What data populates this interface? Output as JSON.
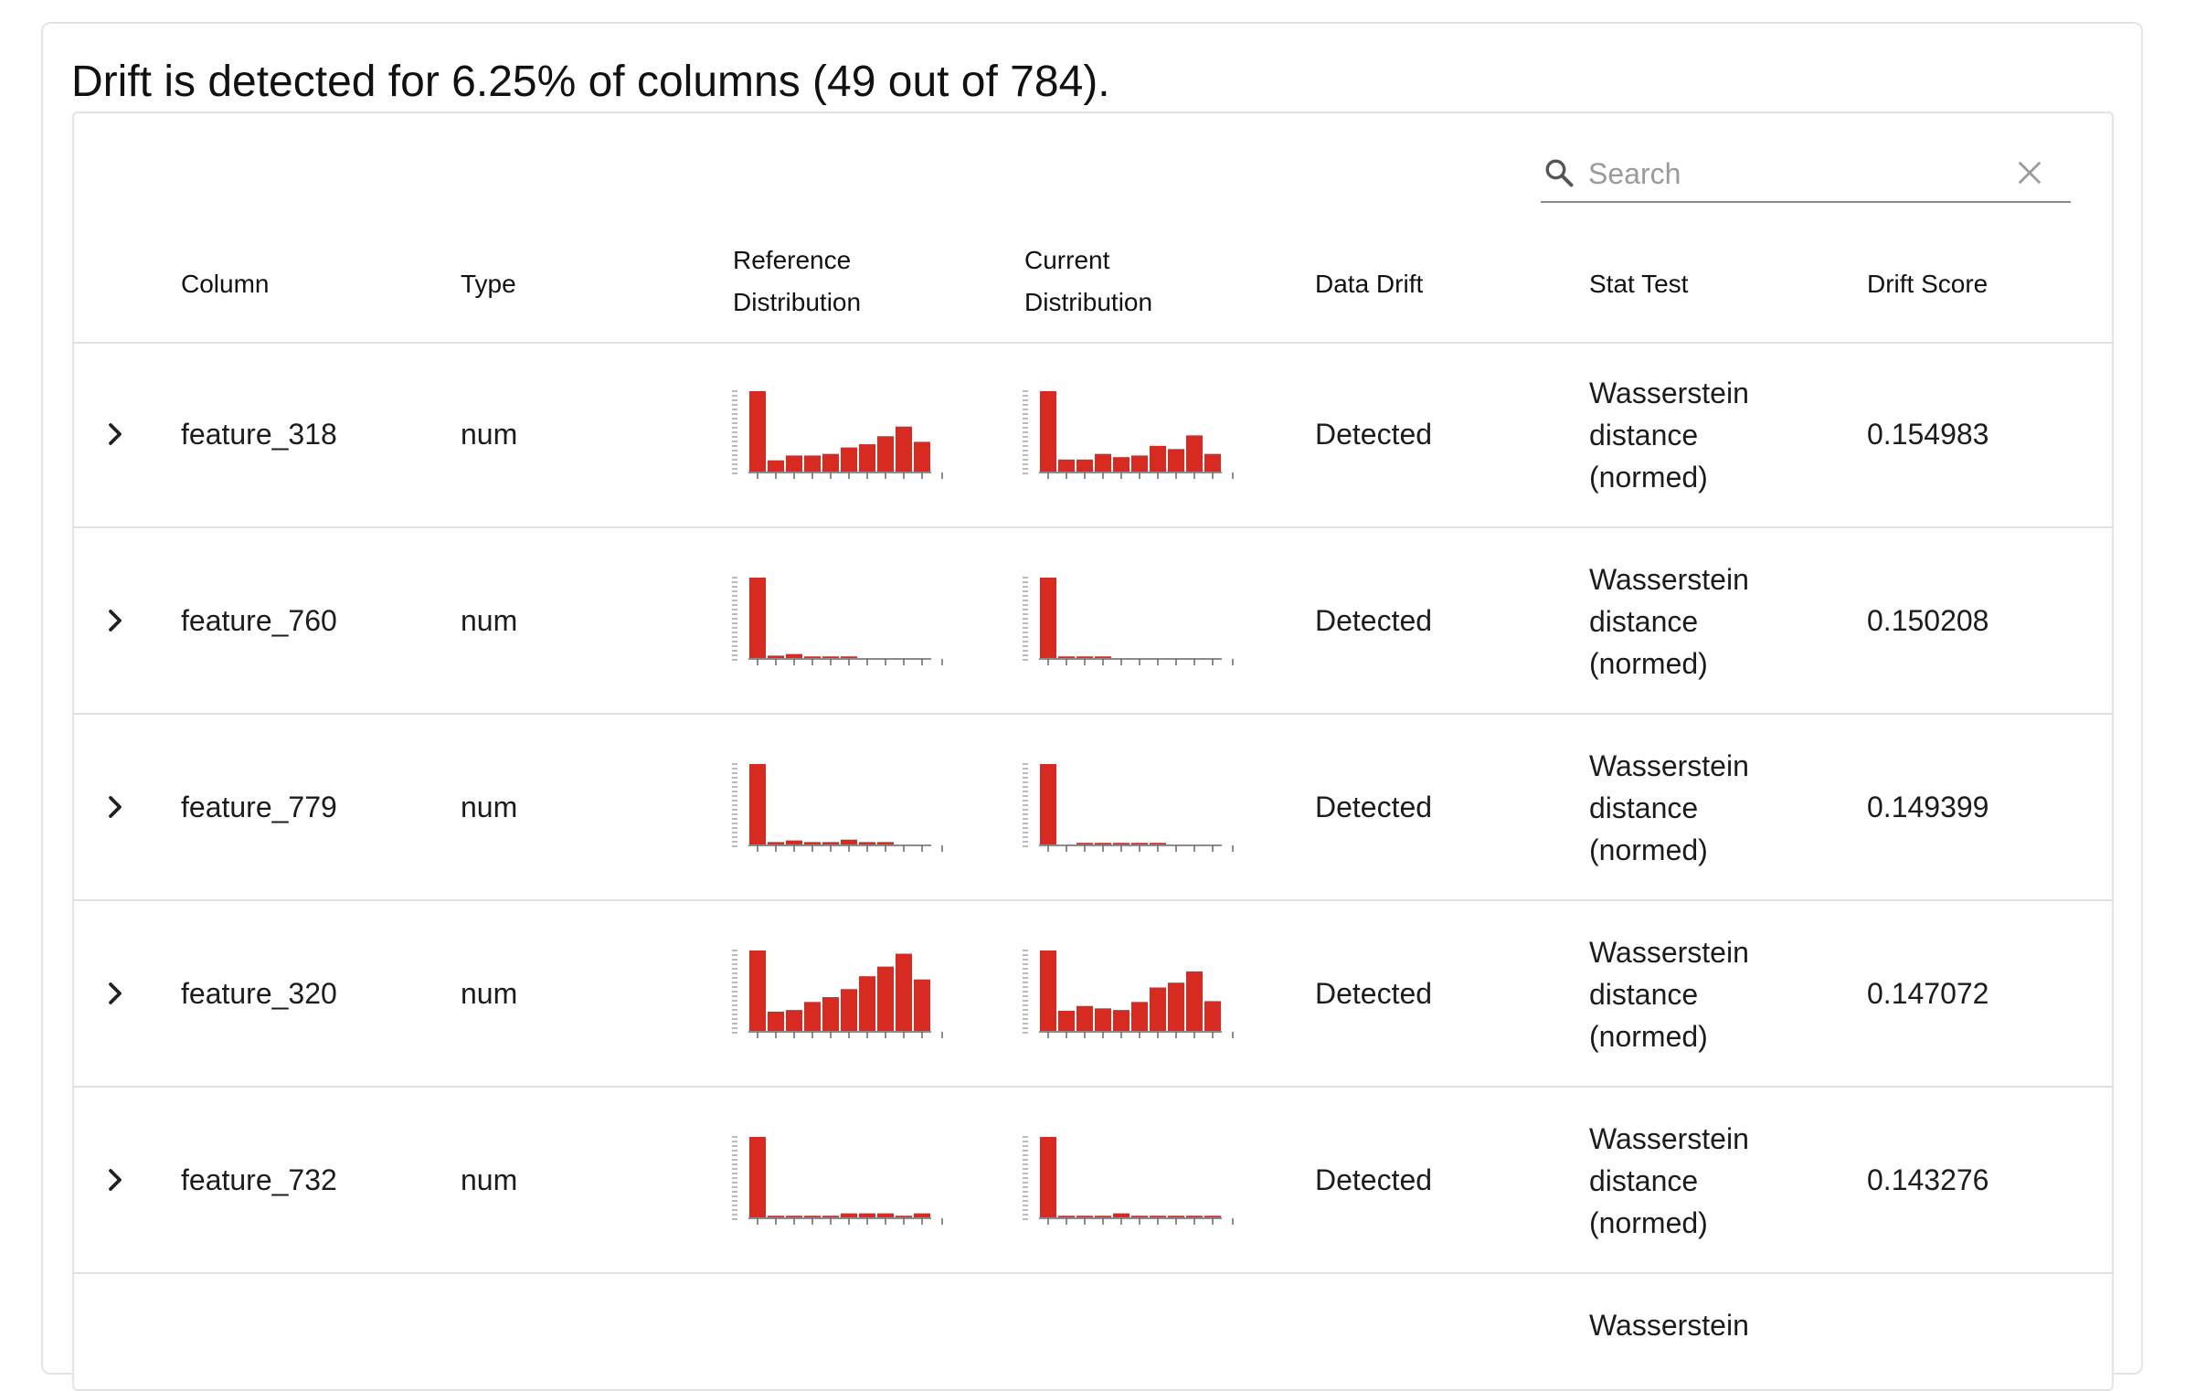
{
  "headline": "Drift is detected for 6.25% of columns (49 out of 784).",
  "search": {
    "placeholder": "Search",
    "value": ""
  },
  "columns": {
    "column": "Column",
    "type": "Type",
    "reference_line1": "Reference",
    "reference_line2": "Distribution",
    "current_line1": "Current",
    "current_line2": "Distribution",
    "data_drift": "Data Drift",
    "stat_test": "Stat Test",
    "drift_score": "Drift Score"
  },
  "colors": {
    "bar": "#d72b22",
    "border": "#e0e0e0"
  },
  "rows": [
    {
      "column": "feature_318",
      "type": "num",
      "drift": "Detected",
      "stat_line1": "Wasserstein",
      "stat_line2": "distance",
      "stat_line3": "(normed)",
      "score": "0.154983",
      "reference": [
        1.0,
        0.14,
        0.2,
        0.2,
        0.22,
        0.3,
        0.34,
        0.44,
        0.56,
        0.37
      ],
      "current": [
        1.0,
        0.15,
        0.15,
        0.22,
        0.18,
        0.2,
        0.32,
        0.28,
        0.45,
        0.22
      ]
    },
    {
      "column": "feature_760",
      "type": "num",
      "drift": "Detected",
      "stat_line1": "Wasserstein",
      "stat_line2": "distance",
      "stat_line3": "(normed)",
      "score": "0.150208",
      "reference": [
        1.0,
        0.03,
        0.05,
        0.02,
        0.02,
        0.02,
        0.0,
        0.0,
        0.0,
        0.0
      ],
      "current": [
        1.0,
        0.02,
        0.02,
        0.02,
        0.0,
        0.0,
        0.0,
        0.0,
        0.0,
        0.0
      ]
    },
    {
      "column": "feature_779",
      "type": "num",
      "drift": "Detected",
      "stat_line1": "Wasserstein",
      "stat_line2": "distance",
      "stat_line3": "(normed)",
      "score": "0.149399",
      "reference": [
        1.0,
        0.03,
        0.05,
        0.03,
        0.03,
        0.06,
        0.03,
        0.03,
        0.0,
        0.0
      ],
      "current": [
        1.0,
        0.0,
        0.02,
        0.02,
        0.02,
        0.02,
        0.02,
        0.0,
        0.0,
        0.0
      ]
    },
    {
      "column": "feature_320",
      "type": "num",
      "drift": "Detected",
      "stat_line1": "Wasserstein",
      "stat_line2": "distance",
      "stat_line3": "(normed)",
      "score": "0.147072",
      "reference": [
        1.0,
        0.24,
        0.26,
        0.36,
        0.42,
        0.52,
        0.68,
        0.8,
        0.96,
        0.64
      ],
      "current": [
        1.0,
        0.25,
        0.31,
        0.28,
        0.26,
        0.36,
        0.54,
        0.6,
        0.74,
        0.37
      ]
    },
    {
      "column": "feature_732",
      "type": "num",
      "drift": "Detected",
      "stat_line1": "Wasserstein",
      "stat_line2": "distance",
      "stat_line3": "(normed)",
      "score": "0.143276",
      "reference": [
        1.0,
        0.02,
        0.02,
        0.02,
        0.02,
        0.05,
        0.05,
        0.05,
        0.02,
        0.05
      ],
      "current": [
        1.0,
        0.02,
        0.02,
        0.02,
        0.05,
        0.02,
        0.02,
        0.02,
        0.02,
        0.02
      ]
    },
    {
      "column": "",
      "type": "",
      "drift": "",
      "stat_line1": "Wasserstein",
      "stat_line2": "",
      "stat_line3": "",
      "score": "",
      "reference": [],
      "current": []
    }
  ]
}
